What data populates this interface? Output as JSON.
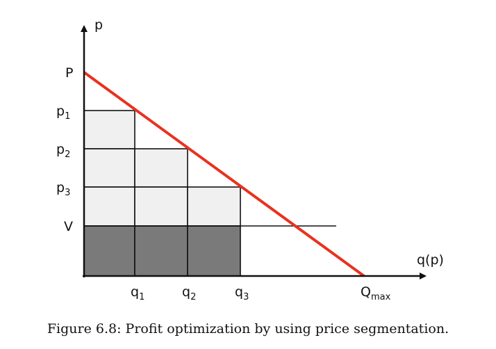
{
  "figure": {
    "y_axis_label": "p",
    "x_axis_label": "q(p)",
    "price_labels": {
      "P": {
        "base": "P",
        "sub": ""
      },
      "p1": {
        "base": "p",
        "sub": "1"
      },
      "p2": {
        "base": "p",
        "sub": "2"
      },
      "p3": {
        "base": "p",
        "sub": "3"
      },
      "V": {
        "base": "V",
        "sub": ""
      }
    },
    "quantity_labels": {
      "q1": {
        "base": "q",
        "sub": "1"
      },
      "q2": {
        "base": "q",
        "sub": "2"
      },
      "q3": {
        "base": "q",
        "sub": "3"
      },
      "Qmax": {
        "base": "Q",
        "sub": "max"
      }
    },
    "colors": {
      "demand_line": "#e8321e",
      "light_fill": "#f0f0f0",
      "dark_fill": "#7a7a7a",
      "axis": "#111111"
    }
  },
  "caption": "Figure 6.8: Profit optimization by using price segmentation."
}
